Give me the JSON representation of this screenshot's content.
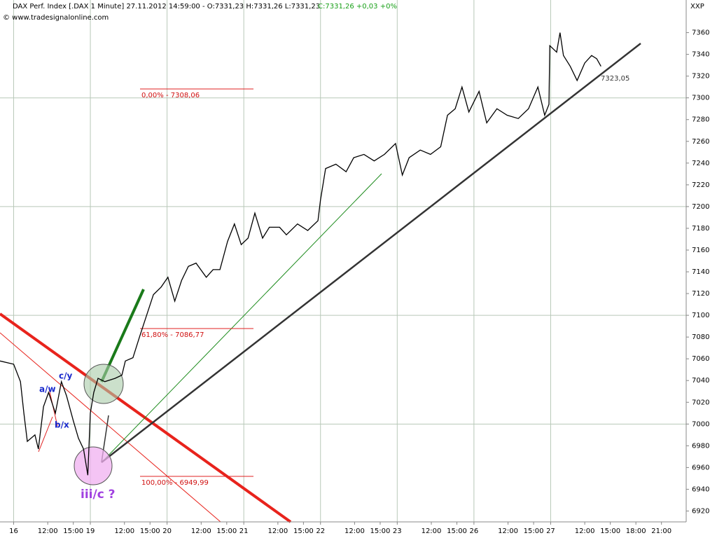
{
  "chart_data": {
    "type": "line",
    "title": "DAX Perf. Index [.DAX  1 Minute] 27.11.2012 14:59:00 - O:7331,23 H:7331,26 L:7331,23",
    "subtitle": "C:7331,26 +0,03 +0%",
    "source": "© www.tradesignalonline.com",
    "y_axis_label": "XXP",
    "last_price_label": "7323,05",
    "annotations": [
      "0,00% - 7308,06",
      "61,80% - 7086,77",
      "100,00% - 6949,99",
      "a/w",
      "b/x",
      "c/y",
      "iii/c ?"
    ],
    "series": [
      {
        "name": "DAX",
        "color": "#000000",
        "x": [
          -1.6,
          0,
          0.8,
          1.2,
          1.6,
          2.5,
          2.9,
          3.5,
          4.1,
          4.9,
          5.6,
          6.2,
          7.0,
          7.6,
          8.2,
          8.7,
          9.0,
          9.4,
          9.9,
          10.7,
          11.9,
          12.7,
          13.1,
          14.0,
          14.8,
          15.6,
          16.4,
          17.3,
          18.1,
          18.9,
          19.7,
          20.5,
          21.4,
          22.6,
          23.4,
          24.2,
          25.1,
          25.9,
          26.7,
          27.5,
          28.3,
          29.2,
          30.0,
          31.2,
          32.0,
          33.3,
          34.5,
          35.7,
          36.0,
          36.6,
          37.8,
          39.0,
          39.9,
          41.1,
          42.3,
          43.5,
          44.8,
          45.6,
          46.4,
          47.7,
          48.9,
          50.1,
          50.9,
          51.8,
          52.6,
          53.4,
          54.6,
          55.5,
          56.7,
          57.9,
          59.2,
          60.4,
          61.5,
          62.3,
          62.8,
          62.9,
          63.7,
          64.1,
          64.5,
          65.3,
          66.1,
          67.0,
          67.8,
          68.4,
          68.9
        ],
        "values": [
          7058,
          7055,
          7039,
          7010,
          6984,
          6990,
          6977,
          7016,
          7029,
          7010,
          7039,
          7026,
          7003,
          6987,
          6977,
          6953,
          7010,
          7029,
          7042,
          7039,
          7042,
          7045,
          7058,
          7061,
          7081,
          7100,
          7119,
          7126,
          7135,
          7113,
          7132,
          7145,
          7148,
          7135,
          7142,
          7142,
          7168,
          7184,
          7165,
          7171,
          7194,
          7171,
          7181,
          7181,
          7174,
          7184,
          7178,
          7187,
          7206,
          7235,
          7239,
          7232,
          7245,
          7248,
          7242,
          7248,
          7258,
          7229,
          7245,
          7252,
          7248,
          7255,
          7284,
          7290,
          7310,
          7287,
          7306,
          7277,
          7290,
          7284,
          7281,
          7290,
          7310,
          7284,
          7294,
          7348,
          7342,
          7360,
          7339,
          7329,
          7316,
          7332,
          7339,
          7336,
          7329
        ]
      }
    ],
    "xlim": [
      -1.6,
      78.9
    ],
    "ylim": [
      6910,
      7390
    ],
    "xticks": [
      {
        "value": 0,
        "label": "16"
      },
      {
        "value": 4,
        "label": "12:00"
      },
      {
        "value": 7,
        "label": "15:00"
      },
      {
        "value": 9,
        "label": "19"
      },
      {
        "value": 13,
        "label": "12:00"
      },
      {
        "value": 16,
        "label": "15:00"
      },
      {
        "value": 18,
        "label": "20"
      },
      {
        "value": 22,
        "label": "12:00"
      },
      {
        "value": 25,
        "label": "15:00"
      },
      {
        "value": 27,
        "label": "21"
      },
      {
        "value": 31,
        "label": "12:00"
      },
      {
        "value": 34,
        "label": "15:00"
      },
      {
        "value": 36,
        "label": "22"
      },
      {
        "value": 40,
        "label": "12:00"
      },
      {
        "value": 43,
        "label": "15:00"
      },
      {
        "value": 45,
        "label": "23"
      },
      {
        "value": 49,
        "label": "12:00"
      },
      {
        "value": 52,
        "label": "15:00"
      },
      {
        "value": 54,
        "label": "26"
      },
      {
        "value": 58,
        "label": "12:00"
      },
      {
        "value": 61,
        "label": "15:00"
      },
      {
        "value": 63,
        "label": "27"
      },
      {
        "value": 67,
        "label": "12:00"
      },
      {
        "value": 70,
        "label": "15:00"
      },
      {
        "value": 73,
        "label": "18:00"
      },
      {
        "value": 76,
        "label": "21:00"
      }
    ],
    "yticks": [
      6920,
      6940,
      6960,
      6980,
      7000,
      7020,
      7040,
      7060,
      7080,
      7100,
      7120,
      7140,
      7160,
      7180,
      7200,
      7220,
      7240,
      7260,
      7280,
      7300,
      7320,
      7340,
      7360
    ],
    "grid": true
  }
}
